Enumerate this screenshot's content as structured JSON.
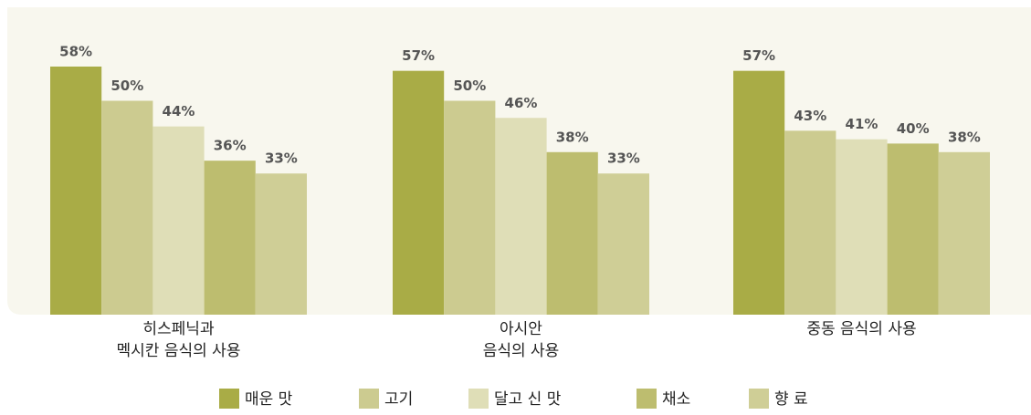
{
  "chart_data": {
    "type": "bar",
    "categories": [
      "히스페닉과\n멕시칸 음식의 사용",
      "아시안\n음식의 사용",
      "중동  음식의 사용"
    ],
    "series": [
      {
        "name": "매운 맛",
        "color": "#a9ac46",
        "values": [
          58,
          57,
          57
        ],
        "value_labels": [
          "58%",
          "57%",
          "57%"
        ]
      },
      {
        "name": "고기",
        "color": "#cccb90",
        "values": [
          50,
          50,
          43
        ],
        "value_labels": [
          "50%",
          "50%",
          "43%"
        ]
      },
      {
        "name": "달고 신 맛",
        "color": "#dfdeb7",
        "values": [
          44,
          46,
          41
        ],
        "value_labels": [
          "44%",
          "46%",
          "41%"
        ]
      },
      {
        "name": "채소",
        "color": "#bdbd6f",
        "values": [
          36,
          38,
          40
        ],
        "value_labels": [
          "36%",
          "38%",
          "40%"
        ]
      },
      {
        "name": "향 료",
        "color": "#cfce96",
        "values": [
          33,
          33,
          38
        ],
        "value_labels": [
          "33%",
          "33%",
          "38%"
        ]
      }
    ]
  }
}
